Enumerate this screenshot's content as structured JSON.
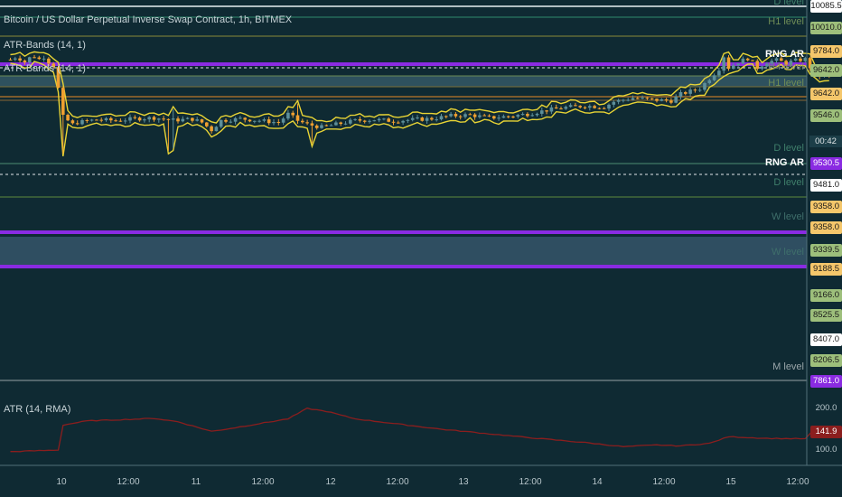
{
  "legend": {
    "title": "Bitcoin / US Dollar Perpetual Inverse Swap Contract, 1h, BITMEX",
    "atr_bands_a": "ATR-Bands (14, 1)",
    "atr_bands_b": "ATR-Bands (14, 1)",
    "atr_indicator": "ATR (14, RMA)"
  },
  "timer": "00:42",
  "colors": {
    "bg": "#0f2a33",
    "bull": "#5d8f9a",
    "bear": "#f0a030",
    "band": "#e8d435",
    "purple": "#8a2be2",
    "atr": "#8b1e1e"
  },
  "chart_data": {
    "type": "candlestick",
    "title": "Bitcoin / US Dollar Perpetual Inverse Swap Contract, 1h, BITMEX",
    "x_ticks": [
      "10",
      "12:00",
      "11",
      "12:00",
      "12",
      "12:00",
      "13",
      "12:00",
      "14",
      "12:00",
      "15",
      "12:00"
    ],
    "path_anchors": [
      [
        0,
        9843
      ],
      [
        1,
        9855
      ],
      [
        2,
        9847
      ],
      [
        3,
        9830
      ],
      [
        4,
        9852
      ],
      [
        5,
        9860
      ],
      [
        6,
        9845
      ],
      [
        7,
        9858
      ],
      [
        8,
        9830
      ],
      [
        9,
        9810
      ],
      [
        10,
        9690
      ],
      [
        11,
        9540
      ],
      [
        12,
        9520
      ],
      [
        13,
        9500
      ],
      [
        14,
        9510
      ],
      [
        18,
        9525
      ],
      [
        22,
        9520
      ],
      [
        26,
        9530
      ],
      [
        30,
        9535
      ],
      [
        34,
        9522
      ],
      [
        38,
        9528
      ],
      [
        40,
        9510
      ],
      [
        42,
        9470
      ],
      [
        44,
        9520
      ],
      [
        48,
        9530
      ],
      [
        52,
        9520
      ],
      [
        56,
        9510
      ],
      [
        58,
        9555
      ],
      [
        60,
        9520
      ],
      [
        62,
        9500
      ],
      [
        65,
        9485
      ],
      [
        68,
        9500
      ],
      [
        72,
        9520
      ],
      [
        76,
        9525
      ],
      [
        80,
        9518
      ],
      [
        84,
        9525
      ],
      [
        88,
        9530
      ],
      [
        92,
        9545
      ],
      [
        96,
        9550
      ],
      [
        100,
        9535
      ],
      [
        104,
        9542
      ],
      [
        108,
        9555
      ],
      [
        112,
        9575
      ],
      [
        116,
        9590
      ],
      [
        120,
        9598
      ],
      [
        124,
        9592
      ],
      [
        126,
        9620
      ],
      [
        130,
        9640
      ],
      [
        134,
        9630
      ],
      [
        138,
        9625
      ],
      [
        140,
        9660
      ],
      [
        144,
        9690
      ],
      [
        148,
        9795
      ],
      [
        149,
        9860
      ],
      [
        150,
        9800
      ],
      [
        152,
        9830
      ],
      [
        154,
        9850
      ],
      [
        156,
        9800
      ],
      [
        158,
        9830
      ],
      [
        160,
        9840
      ],
      [
        162,
        9825
      ],
      [
        164,
        9838
      ],
      [
        166,
        9845
      ],
      [
        168,
        9760
      ],
      [
        171,
        9755
      ]
    ],
    "y_tags": [
      {
        "label": "10085.5",
        "fg": "#1a1a1a",
        "bg": "#ffffff"
      },
      {
        "label": "10010.0",
        "fg": "#1a1a1a",
        "bg": "#9dbf7b"
      },
      {
        "label": "9784.0",
        "fg": "#1a1a1a",
        "bg": "#f5c76b"
      },
      {
        "label": "9642.0",
        "fg": "#1a1a1a",
        "bg": "#9dbf7b"
      },
      {
        "label": "9642.0",
        "fg": "#1a1a1a",
        "bg": "#f5c76b"
      },
      {
        "label": "9546.0",
        "fg": "#1a1a1a",
        "bg": "#9dbf7b"
      },
      {
        "label": "9530.5",
        "fg": "#ffffff",
        "bg": "#8a2be2"
      },
      {
        "label": "9481.0",
        "fg": "#1a1a1a",
        "bg": "#ffffff"
      },
      {
        "label": "9358.0",
        "fg": "#1a1a1a",
        "bg": "#f5c76b"
      },
      {
        "label": "9358.0",
        "fg": "#1a1a1a",
        "bg": "#f5c76b"
      },
      {
        "label": "9339.5",
        "fg": "#1a1a1a",
        "bg": "#9dbf7b"
      },
      {
        "label": "9188.5",
        "fg": "#1a1a1a",
        "bg": "#f5c76b"
      },
      {
        "label": "9166.0",
        "fg": "#1a1a1a",
        "bg": "#9dbf7b"
      },
      {
        "label": "8525.5",
        "fg": "#1a1a1a",
        "bg": "#9dbf7b"
      },
      {
        "label": "8407.0",
        "fg": "#1a1a1a",
        "bg": "#ffffff"
      },
      {
        "label": "8206.5",
        "fg": "#1a1a1a",
        "bg": "#9dbf7b"
      },
      {
        "label": "7861.0",
        "fg": "#ffffff",
        "bg": "#8a2be2"
      }
    ],
    "level_labels": [
      {
        "text": "D level",
        "color": "#3f7f6b"
      },
      {
        "text": "H1 level",
        "color": "#6f8d57"
      },
      {
        "text": "RNG AR",
        "color": "#ffffff"
      },
      {
        "text": "H4 level",
        "color": "#7f8a70"
      },
      {
        "text": "H1 level",
        "color": "#6f8d57"
      },
      {
        "text": "D level",
        "color": "#3f7f6b"
      },
      {
        "text": "RNG AR",
        "color": "#ffffff"
      },
      {
        "text": "D level",
        "color": "#3f7f6b"
      },
      {
        "text": "W level",
        "color": "#3f6f6b"
      },
      {
        "text": "W level",
        "color": "#3f6f6b"
      },
      {
        "text": "M level",
        "color": "#9aa6aa"
      }
    ],
    "atr": {
      "name": "ATR (14, RMA)",
      "last": "141.9",
      "ticks": [
        "200.0",
        "100.0"
      ],
      "anchors": [
        [
          0,
          96
        ],
        [
          10,
          100
        ],
        [
          11,
          160
        ],
        [
          16,
          170
        ],
        [
          30,
          176
        ],
        [
          35,
          168
        ],
        [
          42,
          145
        ],
        [
          45,
          150
        ],
        [
          58,
          175
        ],
        [
          62,
          200
        ],
        [
          66,
          193
        ],
        [
          72,
          175
        ],
        [
          90,
          150
        ],
        [
          110,
          128
        ],
        [
          120,
          118
        ],
        [
          128,
          108
        ],
        [
          135,
          112
        ],
        [
          140,
          110
        ],
        [
          146,
          116
        ],
        [
          150,
          132
        ],
        [
          158,
          128
        ],
        [
          166,
          127
        ],
        [
          168,
          150
        ],
        [
          171,
          143
        ]
      ]
    }
  }
}
